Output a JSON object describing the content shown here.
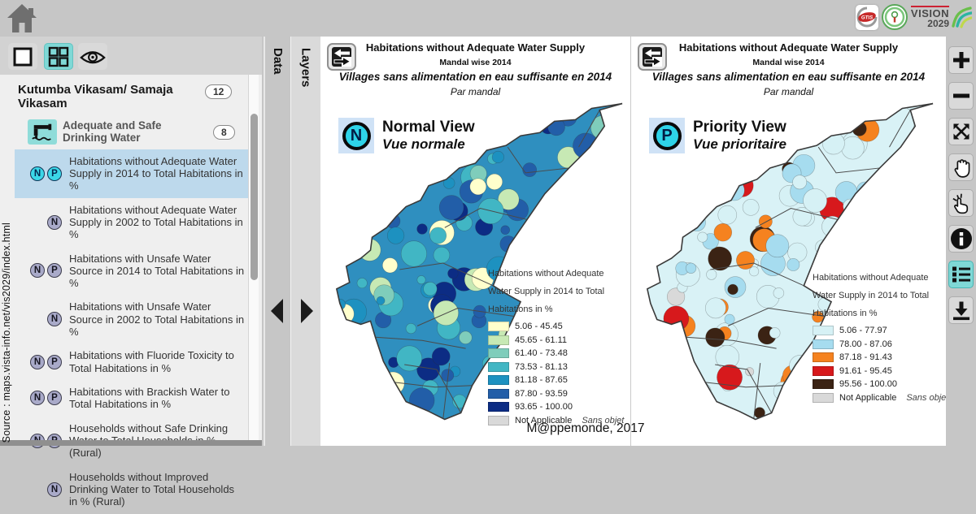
{
  "topbar": {
    "logos": {
      "gtis_text": "GTiS",
      "vision_line1": "VISION",
      "vision_line2": "2029"
    }
  },
  "source_text": "Source : maps.vista-info.net/vis2029/index.html",
  "tabs": {
    "data": "Data",
    "layers": "Layers"
  },
  "badges": {
    "n": "N",
    "p": "P"
  },
  "sidebar": {
    "header": {
      "title": "Kutumba Vikasam/ Samaja Vikasam",
      "count": "12"
    },
    "group": {
      "label": "Adequate and Safe Drinking Water",
      "count": "8"
    },
    "items": [
      {
        "badges": "NP",
        "selected": true,
        "label": "Habitations without Adequate Water Supply in 2014 to Total Habitations in %"
      },
      {
        "badges": "N",
        "selected": false,
        "label": "Habitations without Adequate Water Supply in 2002 to Total Habitations in %"
      },
      {
        "badges": "NP",
        "selected": false,
        "label": "Habitations with Unsafe Water Source in 2014 to Total Habitations in %"
      },
      {
        "badges": "N",
        "selected": false,
        "label": "Habitations with Unsafe Water Source in 2002 to Total Habitations in %"
      },
      {
        "badges": "NP",
        "selected": false,
        "label": "Habitations with Fluoride Toxicity to Total Habitations in %"
      },
      {
        "badges": "NP",
        "selected": false,
        "label": "Habitations with Brackish Water to Total Habitations in %"
      },
      {
        "badges": "NP",
        "selected": false,
        "label": "Households without Safe Drinking Water to Total Households in % (Rural)"
      },
      {
        "badges": "N",
        "selected": false,
        "label": "Households without Improved Drinking Water to Total Households in % (Rural)"
      }
    ]
  },
  "panels": [
    {
      "title": "Habitations without Adequate Water Supply",
      "subtitle": "Mandal wise 2014",
      "title_fr": "Villages sans alimentation en eau suffisante  en 2014",
      "subtitle_fr": "Par mandal",
      "view_badge": "N",
      "view_label": "Normal View",
      "view_label_fr": "Vue normale",
      "base_color": "#2f8fbf",
      "legend": {
        "title_lines": [
          "Habitations without Adequate",
          "Water Supply in 2014 to Total",
          "Habitations in %"
        ],
        "classes": [
          {
            "color": "#ffffcc",
            "label": "5.06 - 45.45"
          },
          {
            "color": "#c7e9b4",
            "label": "45.65 - 61.11"
          },
          {
            "color": "#7fcdbb",
            "label": "61.40 - 73.48"
          },
          {
            "color": "#41b6c4",
            "label": "73.53 - 81.13"
          },
          {
            "color": "#1d91c0",
            "label": "81.18 - 87.65"
          },
          {
            "color": "#225ea8",
            "label": "87.80 - 93.59"
          },
          {
            "color": "#0c2c84",
            "label": "93.65 - 100.00"
          }
        ],
        "na": {
          "color": "#d9d9d9",
          "label": "Not Applicable",
          "label_fr": "Sans objet"
        }
      }
    },
    {
      "title": "Habitations without Adequate Water Supply",
      "subtitle": "Mandal wise 2014",
      "title_fr": "Villages sans alimentation en eau suffisante en 2014",
      "subtitle_fr": "Par mandal",
      "view_badge": "P",
      "view_label": "Priority View",
      "view_label_fr": "Vue prioritaire",
      "base_color": "#d9f2f6",
      "legend": {
        "title_lines": [
          "Habitations without Adequate",
          "Water Supply in 2014 to Total",
          "Habitations in %"
        ],
        "classes": [
          {
            "color": "#d6f1f5",
            "label": "5.06 - 77.97"
          },
          {
            "color": "#a6dcef",
            "label": "78.00 - 87.06"
          },
          {
            "color": "#f5821f",
            "label": "87.18 - 91.43"
          },
          {
            "color": "#d7191c",
            "label": "91.61 - 95.45"
          },
          {
            "color": "#3b2314",
            "label": "95.56 - 100.00"
          }
        ],
        "na": {
          "color": "#d9d9d9",
          "label": "Not Applicable",
          "label_fr": "Sans objet"
        }
      }
    }
  ],
  "caption": "M@ppemonde, 2017",
  "toolbar_icons": [
    "zoom-in",
    "zoom-out",
    "full-extent",
    "pan",
    "select-feature",
    "info",
    "legend",
    "download"
  ]
}
